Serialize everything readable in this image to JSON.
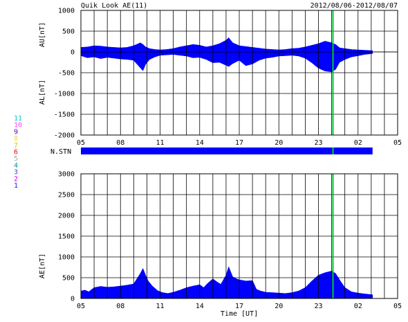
{
  "header": {
    "title": "Quik Look AE(11)",
    "date_range": "2012/08/06-2012/08/07"
  },
  "colors": {
    "fill": "#0000ff",
    "marker": "#00cc33",
    "grid": "#000000",
    "station_bar": "#0000ff",
    "station_codes": [
      "#1a1aff",
      "#cc00cc",
      "#4444ff",
      "#009999",
      "#aaaaaa",
      "#ff0000",
      "#cccc00",
      "#ffcc44",
      "#6600cc",
      "#ff44ff",
      "#00cccc"
    ]
  },
  "station_legend": [
    "11",
    "10",
    "9",
    "8",
    "7",
    "6",
    "5",
    "4",
    "3",
    "2",
    "1"
  ],
  "station_label": "N.STN",
  "chart_data": [
    {
      "type": "area",
      "panel": "AU/AL",
      "ylabel_top": "AU[nT]",
      "ylabel_bottom": "AL[nT]",
      "ylim": [
        -2000,
        1000
      ],
      "yticks": [
        "1000",
        "500",
        "0",
        "-500",
        "-1000",
        "-1500",
        "-2000"
      ],
      "xticks": [
        "05",
        "08",
        "11",
        "14",
        "17",
        "20",
        "23",
        "02",
        "05"
      ],
      "xlim_hours": [
        5,
        29
      ],
      "data_end_hour": 27.1,
      "marker_hour": 24.1,
      "au": {
        "x": [
          5.0,
          5.5,
          6.0,
          6.5,
          7.0,
          7.5,
          8.0,
          8.5,
          9.0,
          9.5,
          9.7,
          9.9,
          10.2,
          10.6,
          11.0,
          11.5,
          12.0,
          12.5,
          13.0,
          13.5,
          14.0,
          14.5,
          15.0,
          15.5,
          16.0,
          16.2,
          16.5,
          17.0,
          17.5,
          18.0,
          18.5,
          19.0,
          19.5,
          20.0,
          20.5,
          21.0,
          21.5,
          22.0,
          22.5,
          23.0,
          23.5,
          24.0,
          24.3,
          24.6,
          25.0,
          25.5,
          26.0,
          26.5,
          27.1
        ],
        "y": [
          110,
          120,
          150,
          140,
          120,
          110,
          100,
          110,
          150,
          220,
          180,
          120,
          80,
          60,
          50,
          60,
          80,
          120,
          150,
          180,
          160,
          120,
          150,
          200,
          280,
          340,
          220,
          150,
          130,
          110,
          90,
          70,
          60,
          50,
          60,
          80,
          90,
          120,
          160,
          200,
          260,
          220,
          180,
          100,
          80,
          60,
          50,
          40,
          30
        ]
      },
      "al": {
        "x": [
          5.0,
          5.5,
          6.0,
          6.5,
          7.0,
          7.5,
          8.0,
          8.5,
          9.0,
          9.5,
          9.7,
          9.9,
          10.2,
          10.6,
          11.0,
          11.5,
          12.0,
          12.5,
          13.0,
          13.5,
          14.0,
          14.5,
          15.0,
          15.5,
          16.0,
          16.2,
          16.5,
          17.0,
          17.5,
          18.0,
          18.5,
          19.0,
          19.5,
          20.0,
          20.5,
          21.0,
          21.5,
          22.0,
          22.5,
          23.0,
          23.5,
          24.0,
          24.3,
          24.6,
          25.0,
          25.5,
          26.0,
          26.5,
          27.1
        ],
        "y": [
          -90,
          -140,
          -120,
          -160,
          -130,
          -150,
          -170,
          -180,
          -200,
          -380,
          -450,
          -300,
          -180,
          -120,
          -80,
          -70,
          -60,
          -80,
          -100,
          -140,
          -130,
          -180,
          -260,
          -250,
          -320,
          -350,
          -280,
          -200,
          -330,
          -290,
          -200,
          -150,
          -130,
          -100,
          -90,
          -80,
          -100,
          -150,
          -260,
          -390,
          -460,
          -480,
          -420,
          -250,
          -180,
          -120,
          -90,
          -60,
          -40
        ]
      }
    },
    {
      "type": "area",
      "panel": "AE",
      "ylabel": "AE[nT]",
      "xlabel": "Time [UT]",
      "ylim": [
        0,
        3000
      ],
      "yticks": [
        "3000",
        "2500",
        "2000",
        "1500",
        "1000",
        "500",
        "0"
      ],
      "xticks": [
        "05",
        "08",
        "11",
        "14",
        "17",
        "20",
        "23",
        "02",
        "05"
      ],
      "xlim_hours": [
        5,
        29
      ],
      "data_end_hour": 27.1,
      "marker_hour": 24.1,
      "ae": {
        "x": [
          5.0,
          5.3,
          5.6,
          6.0,
          6.5,
          7.0,
          7.5,
          8.0,
          8.5,
          9.0,
          9.5,
          9.7,
          9.9,
          10.1,
          10.4,
          10.8,
          11.2,
          11.6,
          12.0,
          12.5,
          13.0,
          13.5,
          14.0,
          14.3,
          14.6,
          15.0,
          15.3,
          15.6,
          16.0,
          16.2,
          16.5,
          16.8,
          17.0,
          17.5,
          18.0,
          18.3,
          18.6,
          19.0,
          19.5,
          20.0,
          20.5,
          21.0,
          21.5,
          22.0,
          22.5,
          23.0,
          23.5,
          24.0,
          24.3,
          24.6,
          25.0,
          25.5,
          26.0,
          26.5,
          27.1
        ],
        "y": [
          180,
          200,
          160,
          260,
          290,
          270,
          280,
          300,
          320,
          350,
          600,
          720,
          560,
          420,
          300,
          190,
          140,
          120,
          150,
          200,
          260,
          300,
          330,
          260,
          360,
          470,
          400,
          340,
          560,
          760,
          520,
          470,
          450,
          420,
          430,
          220,
          180,
          150,
          140,
          130,
          120,
          140,
          180,
          260,
          420,
          560,
          620,
          660,
          600,
          450,
          260,
          160,
          130,
          110,
          90
        ]
      }
    }
  ]
}
